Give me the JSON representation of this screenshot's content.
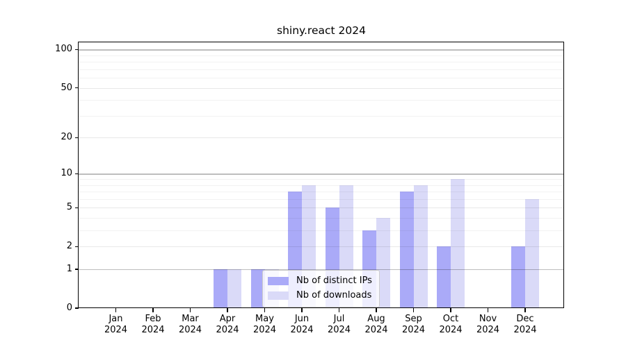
{
  "chart_data": {
    "type": "bar",
    "title": "shiny.react 2024",
    "categories": [
      "Jan",
      "Feb",
      "Mar",
      "Apr",
      "May",
      "Jun",
      "Jul",
      "Aug",
      "Sep",
      "Oct",
      "Nov",
      "Dec"
    ],
    "year": "2024",
    "series": [
      {
        "name": "Nb of distinct IPs",
        "color": "#aaaaf8",
        "values": [
          0,
          0,
          0,
          1,
          1,
          7,
          5,
          3,
          7,
          2,
          0,
          2
        ]
      },
      {
        "name": "Nb of downloads",
        "color": "#dadaf8",
        "values": [
          0,
          0,
          0,
          1,
          1,
          8,
          8,
          4,
          8,
          9,
          0,
          6
        ]
      }
    ],
    "xlabel": "",
    "ylabel": "",
    "y_scale": "log1p",
    "ylim": [
      0,
      114
    ],
    "y_major_ticks": [
      0,
      1,
      2,
      5,
      10,
      20,
      50,
      100
    ],
    "y_minor_gridline_values": [
      3,
      4,
      6,
      7,
      8,
      9,
      30,
      40,
      60,
      70,
      80,
      90
    ],
    "y_decade_gridline_values": [
      1,
      10,
      100
    ],
    "grid": "horizontal",
    "legend_position": "lower-center-inside",
    "colors": {
      "decade_grid": "rgba(0,0,0,0.26)",
      "major_grid": "rgba(0,0,0,0.09)",
      "minor_grid": "rgba(0,0,0,0.05)",
      "spine": "#000000",
      "background": "#ffffff"
    }
  }
}
